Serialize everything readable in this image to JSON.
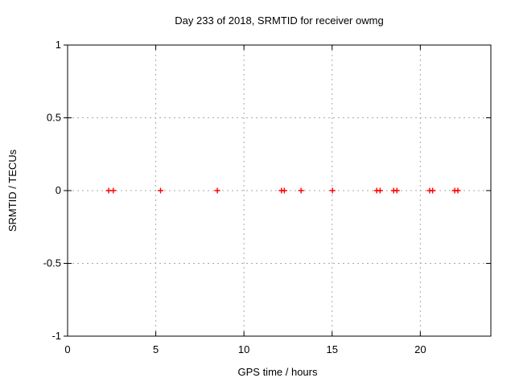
{
  "chart_data": {
    "type": "scatter",
    "title": "Day 233 of 2018, SRMTID for receiver owmg",
    "xlabel": "GPS time / hours",
    "ylabel": "SRMTID / TECUs",
    "xlim": [
      0,
      24
    ],
    "ylim": [
      -1,
      1
    ],
    "x_ticks": [
      0,
      5,
      10,
      15,
      20
    ],
    "y_ticks": [
      -1,
      -0.5,
      0,
      0.5,
      1
    ],
    "grid": true,
    "legend": "none",
    "marker": "plus",
    "colors": {
      "marker": "#ff0000",
      "grid": "#a8a8a8",
      "axis": "#000000",
      "background": "#ffffff"
    },
    "series": [
      {
        "name": "SRMTID",
        "x": [
          2.33,
          2.59,
          5.27,
          8.49,
          12.13,
          12.29,
          13.24,
          15.02,
          17.53,
          17.72,
          18.49,
          18.67,
          20.53,
          20.7,
          21.95,
          22.13
        ],
        "y": [
          0,
          0,
          0,
          0,
          0,
          0,
          0,
          0,
          0,
          0,
          0,
          0,
          0,
          0,
          0,
          0
        ]
      }
    ]
  }
}
